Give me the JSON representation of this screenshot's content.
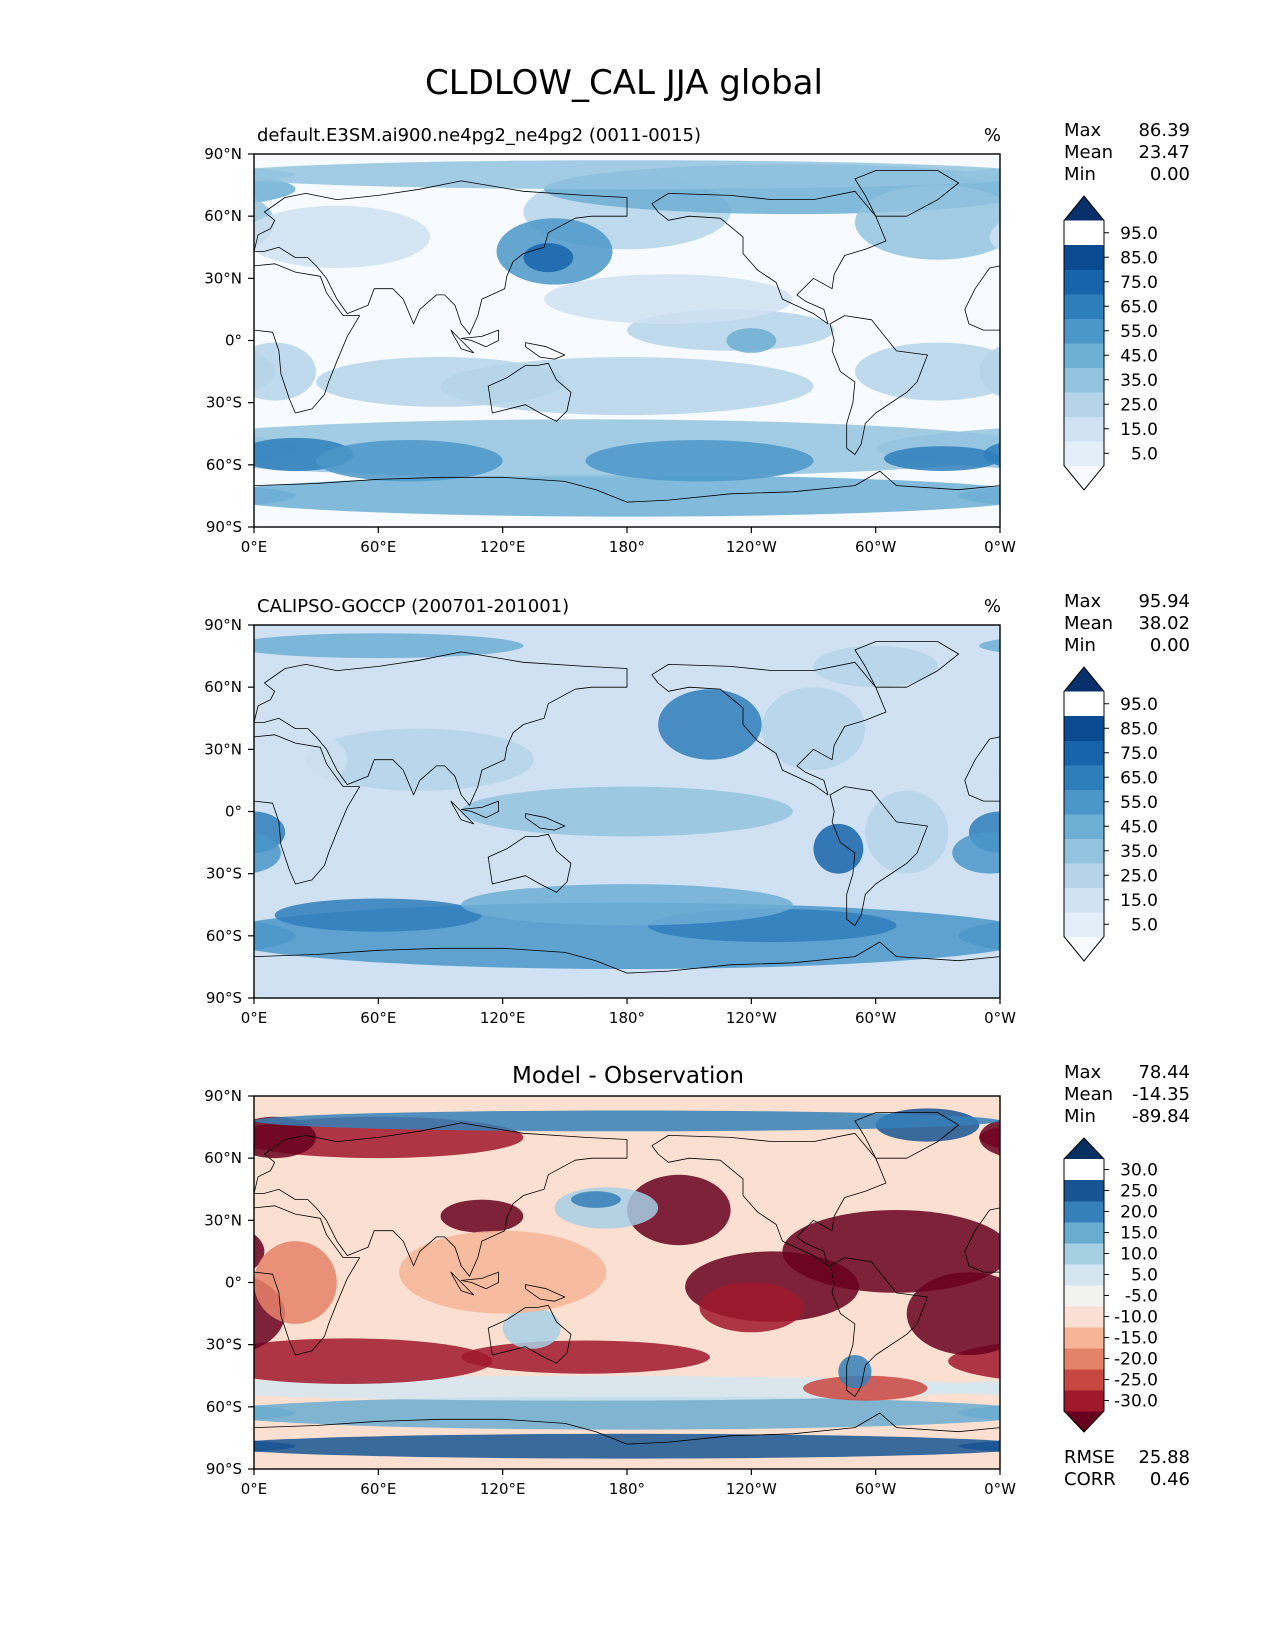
{
  "title": "CLDLOW_CAL JJA global",
  "x_ticks": [
    "0°E",
    "60°E",
    "120°E",
    "180°",
    "120°W",
    "60°W",
    "0°W"
  ],
  "y_ticks": [
    "90°N",
    "60°N",
    "30°N",
    "0°",
    "30°S",
    "60°S",
    "90°S"
  ],
  "stat_labels": {
    "max": "Max",
    "mean": "Mean",
    "min": "Min",
    "rmse": "RMSE",
    "corr": "CORR"
  },
  "colors": {
    "blues": [
      "#f7fbff",
      "#e3eef9",
      "#cfe1f2",
      "#b5d4e9",
      "#93c3df",
      "#6daed5",
      "#4b97c9",
      "#2f7ebc",
      "#1864aa",
      "#0a4a90",
      "#08306b"
    ],
    "rdbu": [
      "#67001f",
      "#a0182b",
      "#c94741",
      "#e58368",
      "#f6b596",
      "#fbe0d1",
      "#f2f2f1",
      "#d4e6f0",
      "#a7cfe4",
      "#6aabd0",
      "#3580b9",
      "#185493",
      "#053061"
    ],
    "coastline": "#000000"
  },
  "chart_data": [
    {
      "type": "heatmap",
      "title": "default.E3SM.ai900.ne4pg2_ne4pg2 (0011-0015)",
      "units": "%",
      "stats": {
        "max": "86.39",
        "mean": "23.47",
        "min": "0.00"
      },
      "colorbar_ticks": [
        "95.0",
        "85.0",
        "75.0",
        "65.0",
        "55.0",
        "45.0",
        "35.0",
        "25.0",
        "15.0",
        "5.0"
      ],
      "colormap": "blues",
      "levels": [
        0,
        10,
        20,
        30,
        40,
        50,
        60,
        70,
        80,
        90,
        100
      ],
      "lat_range": [
        -90,
        90
      ],
      "lon_range": [
        0,
        360
      ]
    },
    {
      "type": "heatmap",
      "title": "CALIPSO-GOCCP (200701-201001)",
      "units": "%",
      "stats": {
        "max": "95.94",
        "mean": "38.02",
        "min": "0.00"
      },
      "colorbar_ticks": [
        "95.0",
        "85.0",
        "75.0",
        "65.0",
        "55.0",
        "45.0",
        "35.0",
        "25.0",
        "15.0",
        "5.0"
      ],
      "colormap": "blues",
      "levels": [
        0,
        10,
        20,
        30,
        40,
        50,
        60,
        70,
        80,
        90,
        100
      ],
      "lat_range": [
        -90,
        90
      ],
      "lon_range": [
        0,
        360
      ]
    },
    {
      "type": "heatmap",
      "title": "Model - Observation",
      "units": "",
      "stats": {
        "max": "78.44",
        "mean": "-14.35",
        "min": "-89.84"
      },
      "extra_stats": {
        "rmse": "25.88",
        "corr": "0.46"
      },
      "colorbar_ticks": [
        "30.0",
        "25.0",
        "20.0",
        "15.0",
        "10.0",
        "5.0",
        "-5.0",
        "-10.0",
        "-15.0",
        "-20.0",
        "-25.0",
        "-30.0"
      ],
      "colormap": "rdbu",
      "levels": [
        -35,
        -30,
        -25,
        -20,
        -15,
        -10,
        -5,
        5,
        10,
        15,
        20,
        25,
        30,
        35
      ],
      "lat_range": [
        -90,
        90
      ],
      "lon_range": [
        0,
        360
      ]
    }
  ]
}
